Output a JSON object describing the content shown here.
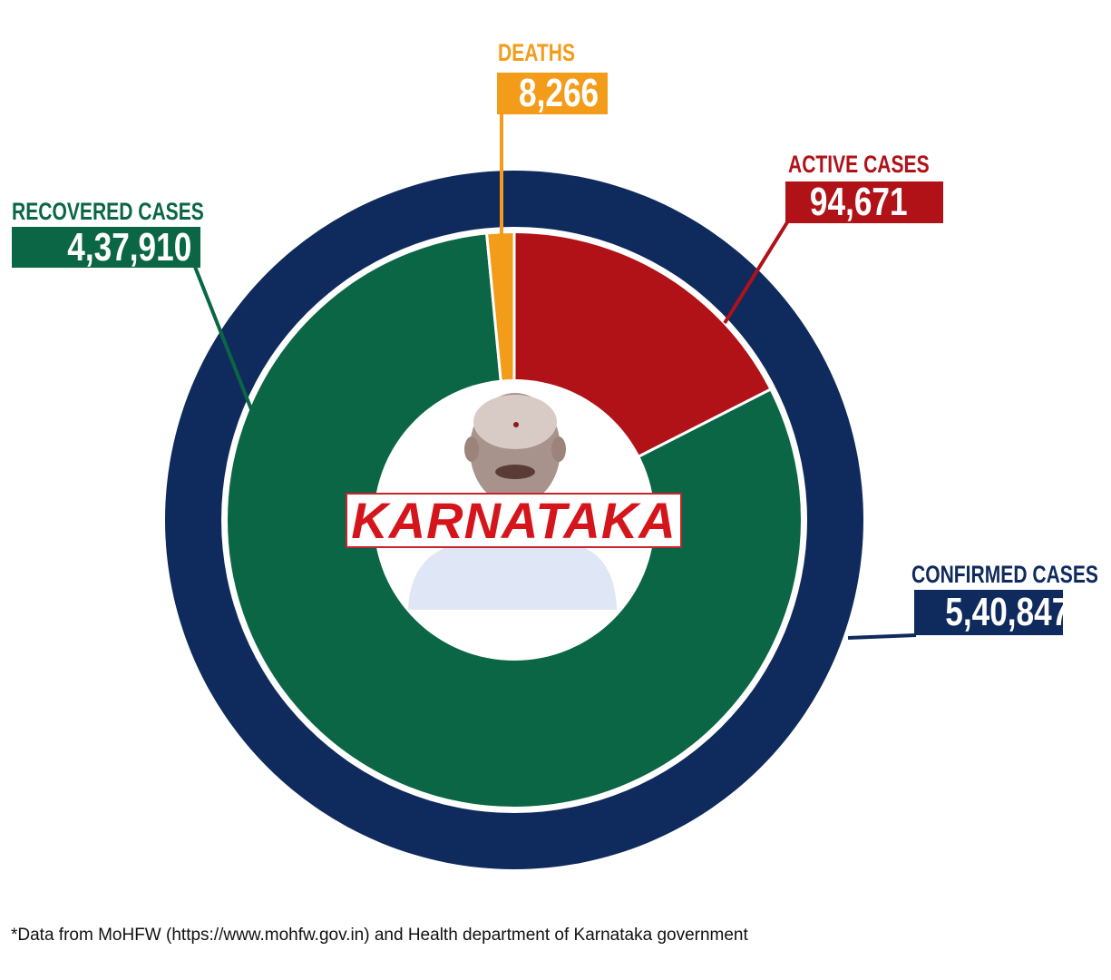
{
  "chart_data": {
    "type": "pie",
    "title": "KARNATAKA",
    "outer_ring": {
      "label": "CONFIRMED CASES",
      "value": 540847,
      "display": "5,40,847",
      "color": "#0f2a5c"
    },
    "series": [
      {
        "name": "ACTIVE CASES",
        "value": 94671,
        "display": "94,671",
        "color": "#b01218"
      },
      {
        "name": "RECOVERED CASES",
        "value": 437910,
        "display": "4,37,910",
        "color": "#0a6644"
      },
      {
        "name": "DEATHS",
        "value": 8266,
        "display": "8,266",
        "color": "#f39c1a"
      }
    ],
    "start": "12 o'clock, clockwise"
  },
  "footnote": "*Data from MoHFW (https://www.mohfw.gov.in) and Health department of Karnataka government"
}
